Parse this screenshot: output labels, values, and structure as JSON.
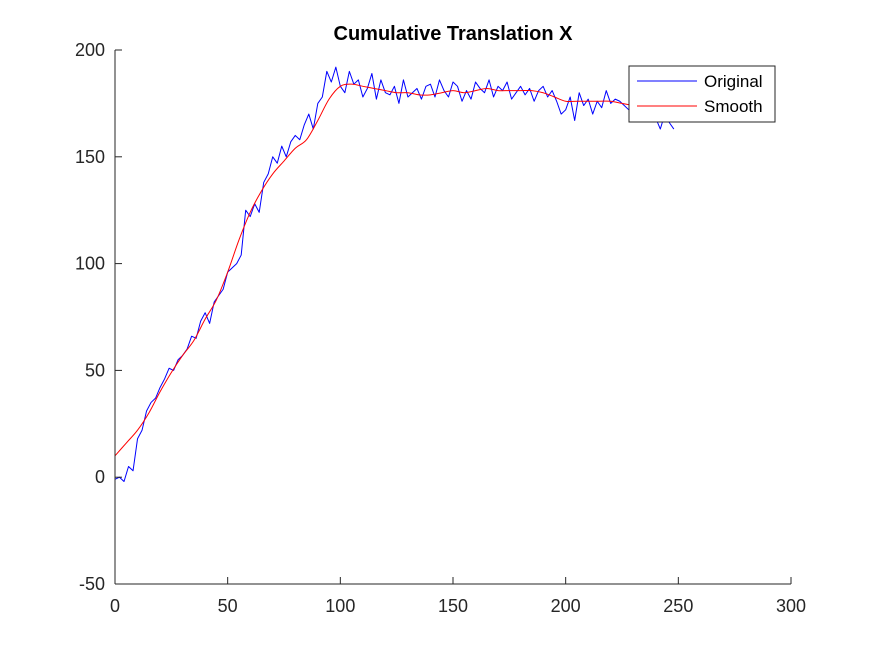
{
  "chart_data": {
    "type": "line",
    "title": "Cumulative Translation X",
    "xlabel": "",
    "ylabel": "",
    "xlim": [
      0,
      300
    ],
    "ylim": [
      -50,
      200
    ],
    "x_ticks": [
      0,
      50,
      100,
      150,
      200,
      250,
      300
    ],
    "y_ticks": [
      -50,
      0,
      50,
      100,
      150,
      200
    ],
    "x_tick_labels": [
      "0",
      "50",
      "100",
      "150",
      "200",
      "250",
      "300"
    ],
    "y_tick_labels": [
      "-50",
      "0",
      "50",
      "100",
      "150",
      "200"
    ],
    "grid": false,
    "legend": {
      "position": "top-right",
      "entries": [
        "Original",
        "Smooth"
      ]
    },
    "series": [
      {
        "name": "Original",
        "color": "#0000ff",
        "x": [
          0,
          2,
          4,
          6,
          8,
          10,
          12,
          14,
          16,
          18,
          20,
          22,
          24,
          26,
          28,
          30,
          32,
          34,
          36,
          38,
          40,
          42,
          44,
          46,
          48,
          50,
          52,
          54,
          56,
          58,
          60,
          62,
          64,
          66,
          68,
          70,
          72,
          74,
          76,
          78,
          80,
          82,
          84,
          86,
          88,
          90,
          92,
          94,
          96,
          98,
          100,
          102,
          104,
          106,
          108,
          110,
          112,
          114,
          116,
          118,
          120,
          122,
          124,
          126,
          128,
          130,
          132,
          134,
          136,
          138,
          140,
          142,
          144,
          146,
          148,
          150,
          152,
          154,
          156,
          158,
          160,
          162,
          164,
          166,
          168,
          170,
          172,
          174,
          176,
          178,
          180,
          182,
          184,
          186,
          188,
          190,
          192,
          194,
          196,
          198,
          200,
          202,
          204,
          206,
          208,
          210,
          212,
          214,
          216,
          218,
          220,
          222,
          224,
          226,
          228,
          230,
          232,
          234,
          236,
          238,
          240,
          242,
          244,
          246,
          248
        ],
        "y": [
          -1,
          0,
          -2,
          5,
          3,
          18,
          22,
          31,
          35,
          37,
          42,
          46,
          51,
          50,
          55,
          57,
          60,
          66,
          65,
          73,
          77,
          72,
          82,
          85,
          88,
          96,
          98,
          100,
          104,
          125,
          122,
          128,
          124,
          138,
          142,
          150,
          147,
          155,
          150,
          157,
          160,
          158,
          165,
          170,
          163,
          175,
          178,
          190,
          185,
          192,
          183,
          180,
          190,
          184,
          186,
          178,
          182,
          189,
          177,
          186,
          180,
          179,
          183,
          175,
          186,
          178,
          180,
          182,
          177,
          183,
          184,
          178,
          186,
          181,
          178,
          185,
          183,
          176,
          181,
          177,
          185,
          182,
          180,
          186,
          178,
          183,
          181,
          185,
          177,
          180,
          183,
          179,
          182,
          176,
          181,
          183,
          178,
          181,
          176,
          170,
          172,
          178,
          167,
          180,
          174,
          177,
          170,
          176,
          173,
          181,
          175,
          177,
          176,
          174,
          172,
          176,
          177,
          172,
          173,
          169,
          168,
          163,
          170,
          166,
          163
        ],
        "smooth": false
      },
      {
        "name": "Smooth",
        "color": "#ff0000",
        "x": [
          0,
          5,
          10,
          15,
          20,
          25,
          30,
          35,
          40,
          45,
          50,
          55,
          60,
          65,
          70,
          75,
          80,
          85,
          90,
          95,
          100,
          105,
          110,
          115,
          120,
          125,
          130,
          135,
          140,
          145,
          150,
          155,
          160,
          165,
          170,
          175,
          180,
          185,
          190,
          195,
          200,
          205,
          210,
          215,
          220,
          225,
          230,
          235,
          240,
          245,
          250
        ],
        "y": [
          10,
          16,
          22,
          30,
          40,
          49,
          57,
          64,
          74,
          83,
          96,
          111,
          124,
          134,
          142,
          148,
          154,
          158,
          167,
          177,
          183,
          184,
          183,
          182,
          181,
          180,
          180,
          179,
          179,
          180,
          181,
          180,
          181,
          182,
          181,
          181,
          181,
          181,
          180,
          178,
          176,
          176,
          176,
          176,
          176,
          175,
          174,
          173,
          172,
          171,
          170
        ],
        "smooth": true
      }
    ]
  }
}
